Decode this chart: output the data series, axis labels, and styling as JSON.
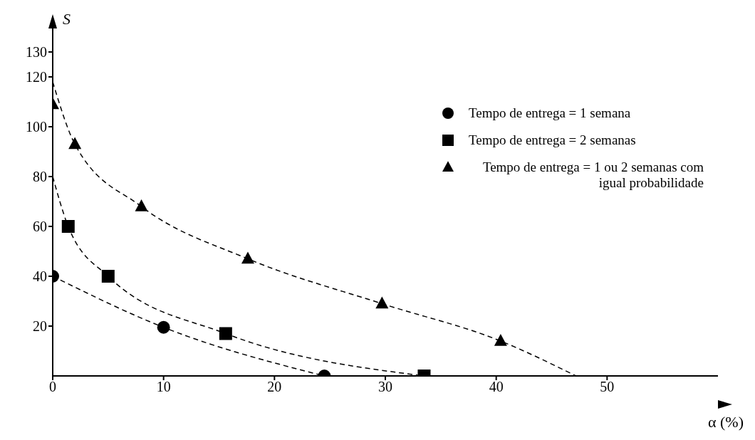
{
  "chart_data": {
    "type": "scatter",
    "xlabel": "α (%)",
    "ylabel": "S",
    "xlim": [
      0,
      60
    ],
    "ylim": [
      0,
      140
    ],
    "xticks": [
      0,
      10,
      20,
      30,
      40,
      50
    ],
    "yticks": [
      20,
      40,
      60,
      80,
      100,
      120,
      130
    ],
    "grid": false,
    "legend": "top right",
    "series": [
      {
        "name": "Tempo de entrega = 1 semana",
        "color": "#000000",
        "marker": "circle",
        "x": [
          0,
          10,
          24.5
        ],
        "values": [
          40,
          19.5,
          0
        ]
      },
      {
        "name": "Tempo de entrega = 2 semanas",
        "color": "#000000",
        "marker": "square",
        "x": [
          1.4,
          5,
          15.6,
          33.5
        ],
        "values": [
          60,
          40,
          17,
          0
        ]
      },
      {
        "name": "Tempo de entrega = 1 ou 2 semanas com igual probabilidade",
        "color": "#000000",
        "marker": "triangle",
        "x": [
          0,
          2,
          8,
          17.6,
          29.7,
          40.4
        ],
        "values": [
          109,
          93,
          68,
          47,
          29,
          14
        ]
      },
      {
        "type": "line",
        "color": "#000000",
        "marker": "none",
        "line_style": "dashed",
        "x": [
          0,
          10,
          24.5
        ],
        "values": [
          40,
          19.5,
          0
        ]
      },
      {
        "type": "line",
        "color": "#000000",
        "marker": "none",
        "line_style": "dashed",
        "x": [
          0,
          1.4,
          5,
          15.6,
          33.5
        ],
        "values": [
          80,
          60,
          40,
          17,
          0
        ]
      },
      {
        "type": "line",
        "color": "#000000",
        "marker": "none",
        "line_style": "dashed",
        "x": [
          0,
          2,
          8,
          17.6,
          29.7,
          40.4,
          47.2
        ],
        "values": [
          118,
          93,
          68,
          47,
          29,
          14,
          0
        ]
      }
    ]
  }
}
